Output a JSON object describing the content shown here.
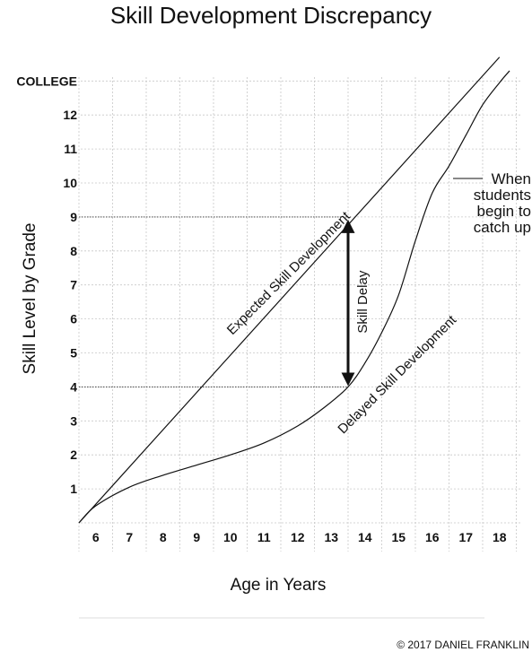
{
  "chart_data": {
    "type": "line",
    "title": "Skill Development Discrepancy",
    "xlabel": "Age in Years",
    "ylabel": "Skill Level by Grade",
    "x_ticks": [
      "6",
      "7",
      "8",
      "9",
      "10",
      "11",
      "12",
      "13",
      "14",
      "15",
      "16",
      "17",
      "18"
    ],
    "y_ticks": [
      "1",
      "2",
      "3",
      "4",
      "5",
      "6",
      "7",
      "8",
      "9",
      "10",
      "11",
      "12",
      "COLLEGE"
    ],
    "xlim": [
      5.5,
      18.5
    ],
    "ylim": [
      0,
      13
    ],
    "grid": true,
    "series": [
      {
        "name": "Expected Skill Development",
        "x": [
          5.5,
          18.0
        ],
        "y": [
          0,
          13.7
        ]
      },
      {
        "name": "Delayed Skill Development",
        "x": [
          5.5,
          6.0,
          7.0,
          8.0,
          9.0,
          10.0,
          11.0,
          12.0,
          12.8,
          13.5,
          14.0,
          14.5,
          15.0,
          15.5,
          16.0,
          16.5,
          17.0,
          17.5,
          18.0,
          18.3
        ],
        "y": [
          0,
          0.5,
          1.05,
          1.4,
          1.7,
          2.0,
          2.35,
          2.85,
          3.4,
          4.0,
          4.7,
          5.6,
          6.7,
          8.3,
          9.7,
          10.5,
          11.4,
          12.3,
          12.95,
          13.3
        ]
      }
    ],
    "guides": [
      {
        "x": [
          5.5,
          13.5
        ],
        "y": [
          9.0,
          9.0
        ]
      },
      {
        "x": [
          5.5,
          13.5
        ],
        "y": [
          4.0,
          4.0
        ]
      }
    ],
    "annotations": {
      "delay_label": "Skill Delay",
      "delay_arrow": {
        "x": 13.5,
        "y_from": 4.0,
        "y_to": 9.0
      },
      "catch_up": [
        "When",
        "students",
        "begin to",
        "catch up"
      ]
    },
    "credit": "© 2017 DANIEL FRANKLIN"
  }
}
